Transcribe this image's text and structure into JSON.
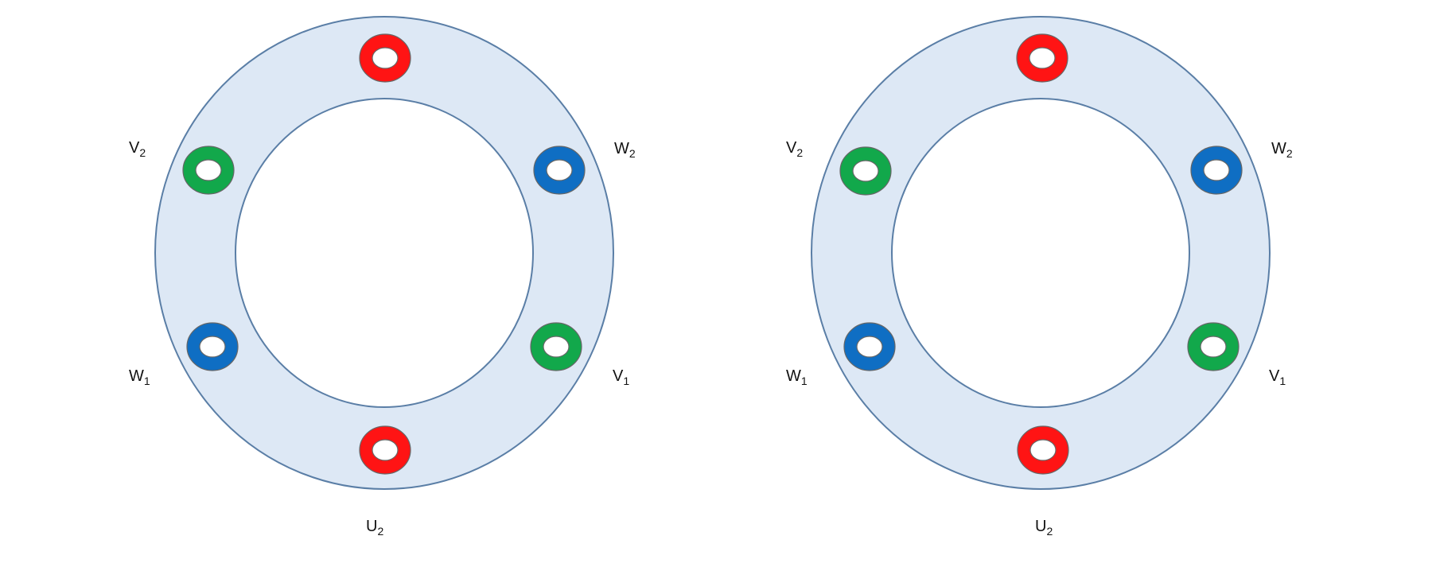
{
  "colors": {
    "phase_u": "#ff1414",
    "phase_v": "#12a84b",
    "phase_w": "#0f6ec3",
    "stator_fill": "#dde8f5",
    "stator_stroke": "#5a7ea6"
  },
  "diagrams": [
    {
      "labels": {
        "v2": {
          "main": "V",
          "sub": "2"
        },
        "w2": {
          "main": "W",
          "sub": "2"
        },
        "w1": {
          "main": "W",
          "sub": "1"
        },
        "v1": {
          "main": "V",
          "sub": "1"
        },
        "u2": {
          "main": "U",
          "sub": "2"
        }
      },
      "coils": [
        {
          "id": "top",
          "phase": "U"
        },
        {
          "id": "upper-left",
          "phase": "V"
        },
        {
          "id": "upper-right",
          "phase": "W"
        },
        {
          "id": "lower-left",
          "phase": "W"
        },
        {
          "id": "lower-right",
          "phase": "V"
        },
        {
          "id": "bottom",
          "phase": "U"
        }
      ]
    },
    {
      "labels": {
        "v2": {
          "main": "V",
          "sub": "2"
        },
        "w2": {
          "main": "W",
          "sub": "2"
        },
        "w1": {
          "main": "W",
          "sub": "1"
        },
        "v1": {
          "main": "V",
          "sub": "1"
        },
        "u2": {
          "main": "U",
          "sub": "2"
        }
      },
      "coils": [
        {
          "id": "top",
          "phase": "U"
        },
        {
          "id": "upper-left",
          "phase": "V"
        },
        {
          "id": "upper-right",
          "phase": "W"
        },
        {
          "id": "lower-left",
          "phase": "W"
        },
        {
          "id": "lower-right",
          "phase": "V"
        },
        {
          "id": "bottom",
          "phase": "U"
        }
      ]
    }
  ]
}
